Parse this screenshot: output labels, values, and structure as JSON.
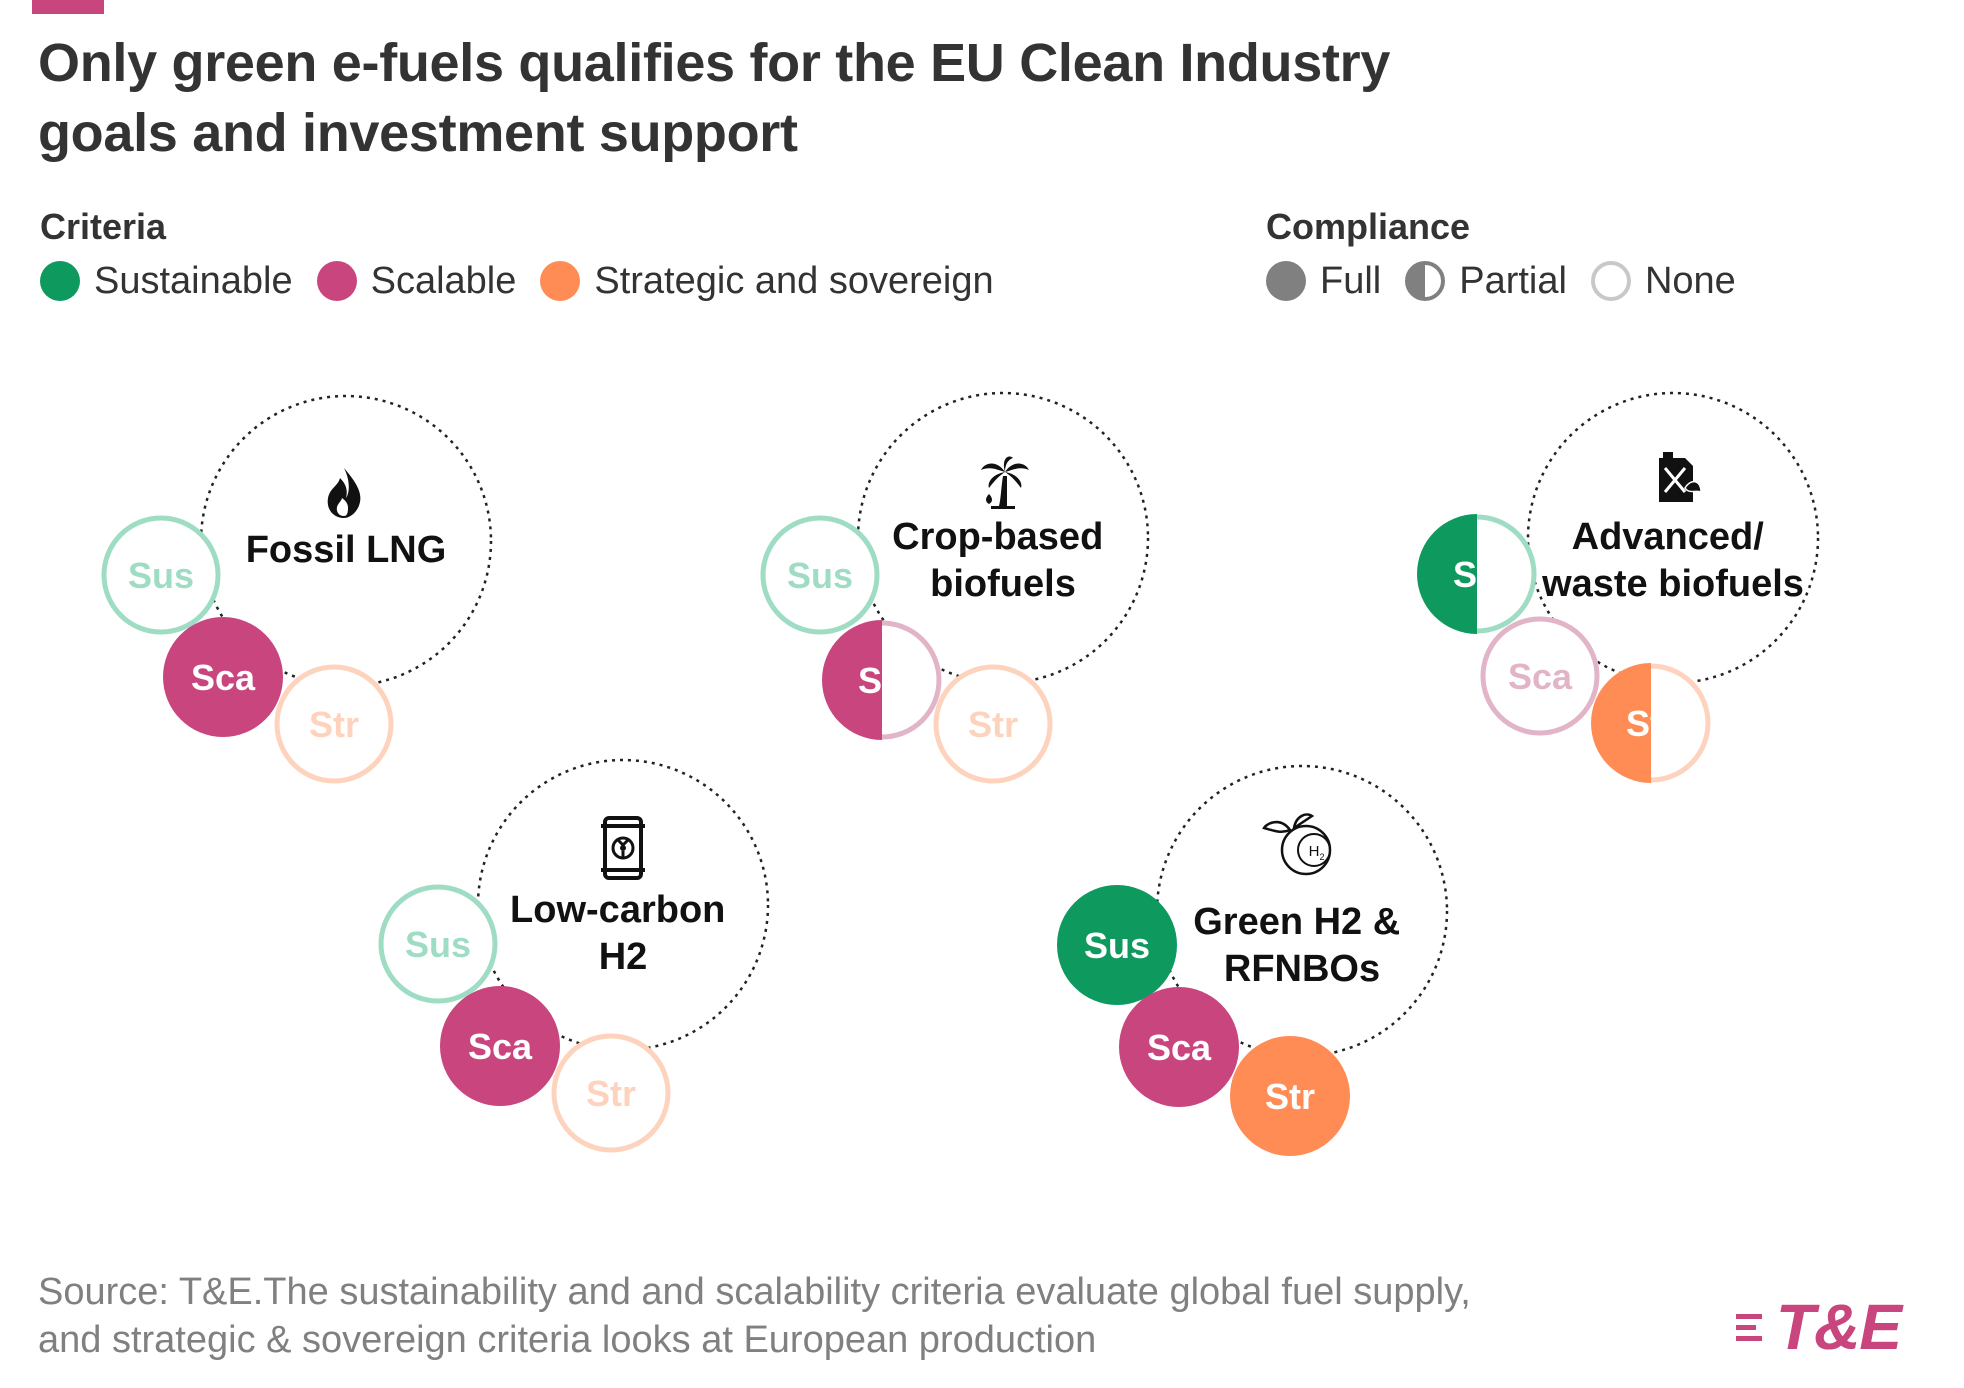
{
  "title": {
    "line1": "Only green e-fuels qualifies for the EU Clean Industry",
    "line2": "goals and investment support"
  },
  "colors": {
    "sustainable": "#0e9a5f",
    "scalable": "#c9457e",
    "strategic": "#ff8c55",
    "accent": "#c9457e",
    "legend_grey": "#808080"
  },
  "legend": {
    "criteria_title": "Criteria",
    "criteria": [
      {
        "label": "Sustainable",
        "color": "#0e9a5f"
      },
      {
        "label": "Scalable",
        "color": "#c9457e"
      },
      {
        "label": "Strategic and sovereign",
        "color": "#ff8c55"
      }
    ],
    "compliance_title": "Compliance",
    "compliance": [
      {
        "label": "Full",
        "fill": "full"
      },
      {
        "label": "Partial",
        "fill": "partial"
      },
      {
        "label": "None",
        "fill": "none"
      }
    ]
  },
  "criteria_abbrev": {
    "sustainable": "Sus",
    "scalable": "Sca",
    "strategic": "Str"
  },
  "fuels": [
    {
      "name": "Fossil LNG",
      "icon": "flame-icon",
      "compliance": {
        "sustainable": "none",
        "scalable": "full",
        "strategic": "none"
      }
    },
    {
      "name": "Crop-based biofuels",
      "icon": "palm-tree-icon",
      "compliance": {
        "sustainable": "none",
        "scalable": "partial",
        "strategic": "none"
      }
    },
    {
      "name": "Advanced/ waste biofuels",
      "icon": "fuel-can-icon",
      "compliance": {
        "sustainable": "partial",
        "scalable": "none",
        "strategic": "partial"
      }
    },
    {
      "name": "Low-carbon H2",
      "icon": "hydrogen-barrel-icon",
      "compliance": {
        "sustainable": "none",
        "scalable": "full",
        "strategic": "none"
      }
    },
    {
      "name": "Green H2 & RFNBOs",
      "icon": "green-h2-icon",
      "compliance": {
        "sustainable": "full",
        "scalable": "full",
        "strategic": "full"
      }
    }
  ],
  "footer": {
    "line1": "Source: T&E.The sustainability and and scalability criteria evaluate global fuel supply,",
    "line2": "and strategic & sovereign criteria looks at European production"
  },
  "brand": "T&E"
}
